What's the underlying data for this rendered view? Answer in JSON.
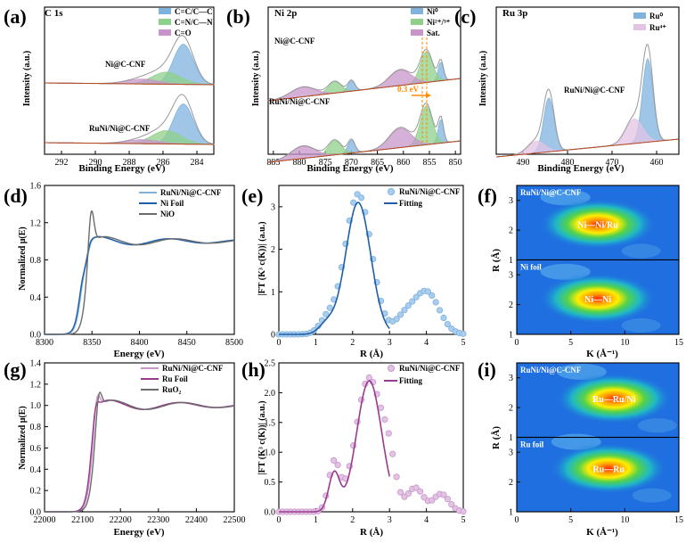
{
  "colors": {
    "blue": "#7fb3dd",
    "blue_dark": "#2b6ca3",
    "green": "#8fd08a",
    "purple": "#c796c9",
    "orange": "#ff8c00",
    "brown": "#b5451b",
    "gray": "#6b6b6b",
    "ni_line": "#1f5fa8",
    "ru_line": "#9a3a8f"
  },
  "chart_data": [
    {
      "id": "a",
      "panel_label": "(a)",
      "type": "line",
      "title": "C 1s",
      "xlabel": "Binding Energy (eV)",
      "ylabel": "Intensity (a.u.)",
      "xlim": [
        293,
        283
      ],
      "xticks": [
        "292",
        "290",
        "288",
        "286",
        "284"
      ],
      "legend": [
        "C=C/C—C",
        "C=N/C—N",
        "C=O"
      ],
      "curve_labels": [
        "Ni@C-CNF",
        "RuNi/Ni@C-CNF"
      ],
      "series": [
        {
          "name": "Ni@C-CNF C=C/C-C",
          "center": 284.8,
          "fwhm": 1.4,
          "height": 1.0
        },
        {
          "name": "Ni@C-CNF C=N/C-N",
          "center": 285.8,
          "fwhm": 2.0,
          "height": 0.3
        },
        {
          "name": "Ni@C-CNF C=O",
          "center": 287.2,
          "fwhm": 2.2,
          "height": 0.12
        },
        {
          "name": "RuNi/Ni@C-CNF C=C/C-C",
          "center": 284.8,
          "fwhm": 1.4,
          "height": 1.0
        },
        {
          "name": "RuNi/Ni@C-CNF C=N/C-N",
          "center": 285.8,
          "fwhm": 2.0,
          "height": 0.33
        },
        {
          "name": "RuNi/Ni@C-CNF C=O",
          "center": 287.2,
          "fwhm": 2.2,
          "height": 0.1
        }
      ]
    },
    {
      "id": "b",
      "panel_label": "(b)",
      "type": "line",
      "title": "Ni 2p",
      "xlabel": "Binding Energy (eV)",
      "ylabel": "Intensity (a.u.)",
      "xlim": [
        886,
        849
      ],
      "xticks": [
        "885",
        "880",
        "875",
        "870",
        "865",
        "860",
        "855",
        "850"
      ],
      "legend": [
        "Ni⁰",
        "Ni²⁺/³⁺",
        "Sat."
      ],
      "curve_labels": [
        "Ni@C-CNF",
        "RuNi/Ni@C-CNF"
      ],
      "annotation": "0.3 eV",
      "series": [
        {
          "name": "Ni0 2p3/2",
          "center": 852.8,
          "fwhm": 1.2,
          "height": 0.55
        },
        {
          "name": "Ni2+/3+ 2p3/2",
          "center": 855.6,
          "fwhm": 2.8,
          "height": 0.9
        },
        {
          "name": "Sat. 2p3/2",
          "center": 860.6,
          "fwhm": 5.0,
          "height": 0.45
        },
        {
          "name": "Ni0 2p1/2",
          "center": 870.0,
          "fwhm": 1.6,
          "height": 0.3
        },
        {
          "name": "Ni2+/3+ 2p1/2",
          "center": 873.2,
          "fwhm": 3.0,
          "height": 0.33
        },
        {
          "name": "Sat. 2p1/2",
          "center": 879.3,
          "fwhm": 5.5,
          "height": 0.28
        }
      ]
    },
    {
      "id": "c",
      "panel_label": "(c)",
      "type": "line",
      "title": "Ru 3p",
      "xlabel": "Binding Energy (eV)",
      "ylabel": "Intensity (a.u.)",
      "xlim": [
        496,
        455
      ],
      "xticks": [
        "490",
        "480",
        "470",
        "460"
      ],
      "legend": [
        "Ru⁰",
        "Ru⁴⁺"
      ],
      "curve_labels": [
        "RuNi/Ni@C-CNF"
      ],
      "series": [
        {
          "name": "Ru0 3p1/2",
          "center": 484.2,
          "fwhm": 2.8,
          "height": 0.55
        },
        {
          "name": "Ru4+ 3p1/2",
          "center": 487.0,
          "fwhm": 4.5,
          "height": 0.12
        },
        {
          "name": "Ru0 3p3/2",
          "center": 462.0,
          "fwhm": 2.8,
          "height": 0.85
        },
        {
          "name": "Ru4+ 3p3/2",
          "center": 465.0,
          "fwhm": 4.5,
          "height": 0.25
        }
      ]
    },
    {
      "id": "d",
      "panel_label": "(d)",
      "type": "line",
      "xlabel": "Energy (eV)",
      "ylabel": "Normalized μ(E)",
      "xlim": [
        8300,
        8500
      ],
      "ylim": [
        0,
        1.6
      ],
      "xticks": [
        "8300",
        "8350",
        "8400",
        "8450",
        "8500"
      ],
      "yticks": [
        "0.0",
        "0.4",
        "0.8",
        "1.2",
        "1.6"
      ],
      "legend": [
        "RuNi/Ni@C-CNF",
        "Ni Foil",
        "NiO"
      ],
      "series": [
        {
          "name": "RuNi/Ni@C-CNF",
          "edge": 8339,
          "whiteline": 0.9
        },
        {
          "name": "Ni Foil",
          "edge": 8338,
          "whiteline": 0.88
        },
        {
          "name": "NiO",
          "edge": 8344,
          "whiteline": 1.45
        }
      ]
    },
    {
      "id": "e",
      "panel_label": "(e)",
      "type": "line",
      "xlabel": "R (Å)",
      "ylabel": "|FT (K³ c(K))| (a.u.)",
      "xlim": [
        0,
        5
      ],
      "ylim": [
        0,
        3.5
      ],
      "xticks": [
        "0",
        "1",
        "2",
        "3",
        "4",
        "5"
      ],
      "yticks": [
        "0",
        "1",
        "2",
        "3"
      ],
      "legend": [
        "RuNi/Ni@C-CNF",
        "Fitting"
      ],
      "series": [
        {
          "name": "RuNi/Ni@C-CNF",
          "peak_r": 2.15,
          "peak_value": 3.3
        },
        {
          "name": "Fitting",
          "peak_r": 2.15,
          "peak_value": 3.1
        }
      ]
    },
    {
      "id": "f",
      "panel_label": "(f)",
      "type": "heatmap",
      "xlabel": "K (Å⁻¹)",
      "ylabel": "R (Å)",
      "xlim": [
        0,
        15
      ],
      "ylim": [
        1,
        3.5
      ],
      "xticks": [
        "0",
        "5",
        "10",
        "15"
      ],
      "yticks": [
        "1",
        "2",
        "3"
      ],
      "subpanels": [
        {
          "name": "RuNi/Ni@C-CNF",
          "peak_label": "Ni—Ni/Ru",
          "peak_k": 7.5,
          "peak_r": 2.2
        },
        {
          "name": "Ni foil",
          "peak_label": "Ni—Ni",
          "peak_k": 7.5,
          "peak_r": 2.2
        }
      ]
    },
    {
      "id": "g",
      "panel_label": "(g)",
      "type": "line",
      "xlabel": "Energy (eV)",
      "ylabel": "Normalized μ(E)",
      "xlim": [
        22000,
        22500
      ],
      "ylim": [
        0,
        1.4
      ],
      "xticks": [
        "22000",
        "22100",
        "22200",
        "22300",
        "22400",
        "22500"
      ],
      "yticks": [
        "0.0",
        "0.2",
        "0.4",
        "0.6",
        "0.8",
        "1.0",
        "1.2",
        "1.4"
      ],
      "legend": [
        "RuNi/Ni@C-CNF",
        "Ru Foil",
        "RuO₂"
      ],
      "series": [
        {
          "name": "RuNi/Ni@C-CNF",
          "edge": 22125,
          "whiteline": 1.2
        },
        {
          "name": "Ru Foil",
          "edge": 22122,
          "whiteline": 1.12
        },
        {
          "name": "RuO2",
          "edge": 22130,
          "whiteline": 1.23
        }
      ]
    },
    {
      "id": "h",
      "panel_label": "(h)",
      "type": "line",
      "xlabel": "R (Å)",
      "ylabel": "|FT (K³ c(K))| (a.u.)",
      "xlim": [
        0,
        5
      ],
      "ylim": [
        0,
        2.5
      ],
      "xticks": [
        "0",
        "1",
        "2",
        "3",
        "4",
        "5"
      ],
      "yticks": [
        "0.0",
        "0.5",
        "1.0",
        "1.5",
        "2.0",
        "2.5"
      ],
      "legend": [
        "RuNi/Ni@C-CNF",
        "Fitting"
      ],
      "series": [
        {
          "name": "RuNi/Ni@C-CNF",
          "peak_r": 2.45,
          "peak_value": 2.25
        },
        {
          "name": "Fitting",
          "peak_r": 2.45,
          "peak_value": 2.2
        }
      ]
    },
    {
      "id": "i",
      "panel_label": "(i)",
      "type": "heatmap",
      "xlabel": "K (Å⁻¹)",
      "ylabel": "R (Å)",
      "xlim": [
        0,
        15
      ],
      "ylim": [
        1,
        3.5
      ],
      "xticks": [
        "0",
        "5",
        "10",
        "15"
      ],
      "yticks": [
        "1",
        "2",
        "3"
      ],
      "subpanels": [
        {
          "name": "RuNi/Ni@C-CNF",
          "peak_label": "Ru—Ru/Ni",
          "peak_k": 9.0,
          "peak_r": 2.3
        },
        {
          "name": "Ru foil",
          "peak_label": "Ru—Ru",
          "peak_k": 8.5,
          "peak_r": 2.45
        }
      ]
    }
  ]
}
